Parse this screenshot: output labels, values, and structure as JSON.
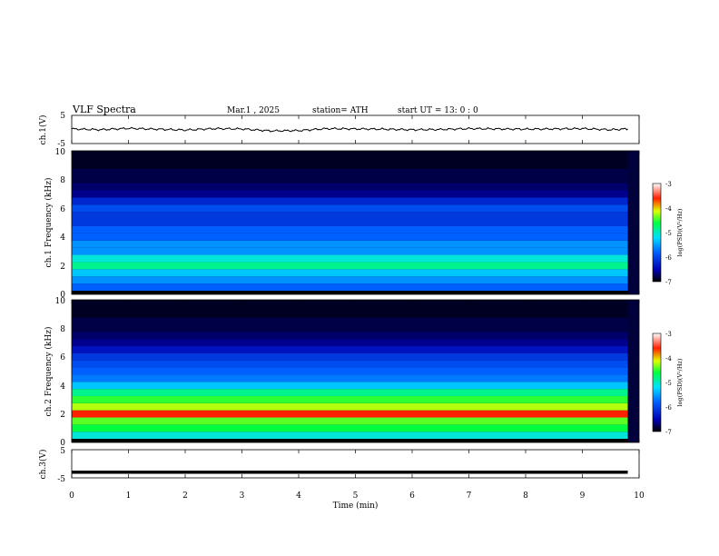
{
  "header": {
    "title": "VLF Spectra",
    "date": "Mar.1 , 2025",
    "station": "station= ATH",
    "start_ut": "start UT = 13: 0 : 0"
  },
  "chart_data": [
    {
      "type": "line",
      "ylabel": "ch.1(V)",
      "ytick_labels": [
        "5",
        "-5"
      ],
      "ylim": [
        -5,
        5
      ],
      "xlim": [
        0,
        10
      ],
      "series": [
        {
          "x": [
            0,
            0.5,
            1,
            1.5,
            2,
            2.5,
            3,
            3.5,
            4,
            4.5,
            5,
            5.5,
            6,
            6.5,
            7,
            7.5,
            8,
            8.5,
            9,
            9.5,
            9.8
          ],
          "values": [
            0.2,
            -0.1,
            0.4,
            0.1,
            -0.2,
            0.3,
            0.2,
            -0.5,
            -0.4,
            0.3,
            0.2,
            0.1,
            -0.1,
            0.0,
            0.3,
            0.2,
            0.1,
            0.2,
            0.3,
            -0.1,
            0.2
          ]
        }
      ],
      "color": "#000000"
    },
    {
      "type": "heatmap",
      "ylabel": "ch.1 Frequency (kHz)",
      "ytick_labels": [
        "0",
        "2",
        "4",
        "6",
        "8",
        "10"
      ],
      "ylim": [
        0,
        10
      ],
      "xlim": [
        0,
        9.8
      ],
      "freq_khz": [
        0,
        0.5,
        1,
        1.5,
        2,
        2.5,
        3,
        3.5,
        4,
        4.5,
        5,
        5.5,
        6,
        6.5,
        7,
        7.5,
        8,
        8.5,
        9,
        9.5,
        10
      ],
      "log_psd": [
        -7.0,
        -6.0,
        -5.8,
        -5.6,
        -5.2,
        -5.4,
        -5.8,
        -5.8,
        -6.0,
        -6.0,
        -6.2,
        -6.2,
        -6.1,
        -6.3,
        -6.6,
        -6.7,
        -6.8,
        -6.8,
        -6.9,
        -6.9,
        -6.9
      ],
      "colorbar": {
        "label": "log(PSD)(V²/Hz)",
        "tick_labels": [
          "-3",
          "-4",
          "-5",
          "-6",
          "-7"
        ],
        "range": [
          -7,
          -3
        ]
      }
    },
    {
      "type": "heatmap",
      "ylabel": "ch.2 Frequency (kHz)",
      "ytick_labels": [
        "0",
        "2",
        "4",
        "6",
        "8",
        "10"
      ],
      "ylim": [
        0,
        10
      ],
      "xlim": [
        0,
        9.8
      ],
      "freq_khz": [
        0,
        0.5,
        1,
        1.5,
        2,
        2.5,
        3,
        3.5,
        4,
        4.5,
        5,
        5.5,
        6,
        6.5,
        7,
        7.5,
        8,
        8.5,
        9,
        9.5,
        10
      ],
      "log_psd": [
        -7.0,
        -5.4,
        -5.0,
        -4.8,
        -4.0,
        -4.6,
        -4.9,
        -5.2,
        -5.6,
        -5.9,
        -6.0,
        -6.1,
        -6.2,
        -6.4,
        -6.6,
        -6.7,
        -6.8,
        -6.8,
        -6.9,
        -6.9,
        -6.9
      ],
      "colorbar": {
        "label": "log(PSD)(V²/Hz)",
        "tick_labels": [
          "-3",
          "-4",
          "-5",
          "-6",
          "-7"
        ],
        "range": [
          -7,
          -3
        ]
      }
    },
    {
      "type": "line",
      "ylabel": "ch.3(V)",
      "xlabel": "Time (min)",
      "ytick_labels": [
        "5",
        "-5"
      ],
      "ylim": [
        -5,
        5
      ],
      "xlim": [
        0,
        10
      ],
      "xtick_labels": [
        "0",
        "1",
        "2",
        "3",
        "4",
        "5",
        "6",
        "7",
        "8",
        "9",
        "10"
      ],
      "series": [
        {
          "x": [
            0,
            9.8
          ],
          "values": [
            -3.0,
            -3.0
          ]
        }
      ],
      "color": "#000000"
    }
  ]
}
